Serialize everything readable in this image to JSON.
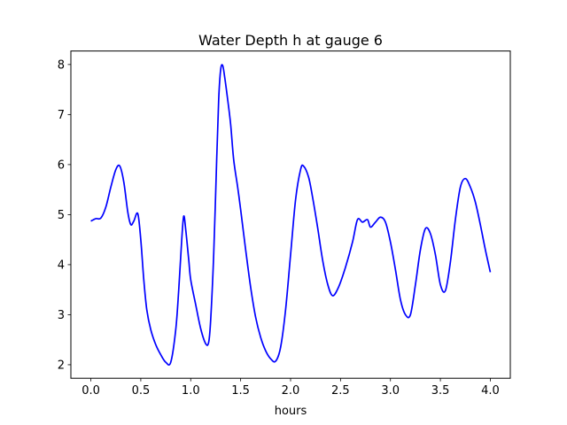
{
  "chart_data": {
    "type": "line",
    "title": "Water Depth h at gauge 6",
    "xlabel": "hours",
    "ylabel": "",
    "xlim": [
      -0.2,
      4.2
    ],
    "ylim": [
      1.73,
      8.27
    ],
    "xticks": [
      0.0,
      0.5,
      1.0,
      1.5,
      2.0,
      2.5,
      3.0,
      3.5,
      4.0
    ],
    "xtick_labels": [
      "0.0",
      "0.5",
      "1.0",
      "1.5",
      "2.0",
      "2.5",
      "3.0",
      "3.5",
      "4.0"
    ],
    "yticks": [
      2,
      3,
      4,
      5,
      6,
      7,
      8
    ],
    "ytick_labels": [
      "2",
      "3",
      "4",
      "5",
      "6",
      "7",
      "8"
    ],
    "grid": false,
    "line_color": "#0000ff",
    "series": [
      {
        "x": [
          0.0,
          0.05,
          0.1,
          0.15,
          0.2,
          0.25,
          0.29,
          0.33,
          0.37,
          0.4,
          0.43,
          0.47,
          0.5,
          0.53,
          0.56,
          0.6,
          0.65,
          0.7,
          0.75,
          0.8,
          0.85,
          0.88,
          0.91,
          0.93,
          0.95,
          0.98,
          1.0,
          1.05,
          1.1,
          1.15,
          1.18,
          1.2,
          1.23,
          1.26,
          1.28,
          1.3,
          1.32,
          1.34,
          1.37,
          1.4,
          1.43,
          1.47,
          1.5,
          1.55,
          1.6,
          1.65,
          1.7,
          1.75,
          1.8,
          1.85,
          1.9,
          1.95,
          2.0,
          2.05,
          2.1,
          2.13,
          2.18,
          2.22,
          2.27,
          2.32,
          2.37,
          2.42,
          2.48,
          2.55,
          2.62,
          2.67,
          2.72,
          2.77,
          2.8,
          2.85,
          2.9,
          2.95,
          3.0,
          3.05,
          3.1,
          3.15,
          3.2,
          3.25,
          3.3,
          3.35,
          3.4,
          3.45,
          3.5,
          3.55,
          3.6,
          3.65,
          3.7,
          3.75,
          3.8,
          3.85,
          3.9,
          3.95,
          4.0
        ],
        "y": [
          4.87,
          4.92,
          4.93,
          5.15,
          5.55,
          5.9,
          5.97,
          5.65,
          5.05,
          4.8,
          4.87,
          5.02,
          4.5,
          3.7,
          3.1,
          2.7,
          2.4,
          2.2,
          2.05,
          2.05,
          2.7,
          3.5,
          4.5,
          4.97,
          4.7,
          4.1,
          3.7,
          3.2,
          2.72,
          2.42,
          2.45,
          2.9,
          4.2,
          6.1,
          7.3,
          7.9,
          7.98,
          7.75,
          7.3,
          6.8,
          6.1,
          5.55,
          5.1,
          4.3,
          3.55,
          2.95,
          2.55,
          2.28,
          2.12,
          2.07,
          2.35,
          3.1,
          4.2,
          5.3,
          5.9,
          5.97,
          5.75,
          5.35,
          4.75,
          4.1,
          3.62,
          3.38,
          3.55,
          3.95,
          4.45,
          4.9,
          4.85,
          4.9,
          4.75,
          4.85,
          4.95,
          4.85,
          4.45,
          3.9,
          3.3,
          3.0,
          3.0,
          3.6,
          4.3,
          4.72,
          4.62,
          4.2,
          3.6,
          3.48,
          4.05,
          4.9,
          5.55,
          5.72,
          5.55,
          5.25,
          4.8,
          4.3,
          3.85
        ]
      }
    ]
  }
}
